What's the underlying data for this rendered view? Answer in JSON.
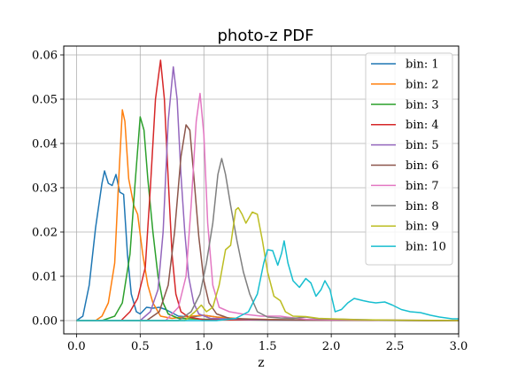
{
  "chart_data": {
    "type": "line",
    "title": "photo-z PDF",
    "xlabel": "z",
    "ylabel": "",
    "xlim": [
      -0.1,
      3.0
    ],
    "ylim": [
      -0.003,
      0.062
    ],
    "grid": true,
    "legend_position": "top-right",
    "x_ticks": [
      0.0,
      0.5,
      1.0,
      1.5,
      2.0,
      2.5,
      3.0
    ],
    "x_tick_labels": [
      "0.0",
      "0.5",
      "1.0",
      "1.5",
      "2.0",
      "2.5",
      "3.0"
    ],
    "y_ticks": [
      0.0,
      0.01,
      0.02,
      0.03,
      0.04,
      0.05,
      0.06
    ],
    "y_tick_labels": [
      "0.00",
      "0.01",
      "0.02",
      "0.03",
      "0.04",
      "0.05",
      "0.06"
    ],
    "series": [
      {
        "name": "bin: 1",
        "color": "#1f77b4",
        "points": [
          [
            0.0,
            0.0
          ],
          [
            0.05,
            0.001
          ],
          [
            0.1,
            0.008
          ],
          [
            0.15,
            0.021
          ],
          [
            0.2,
            0.031
          ],
          [
            0.22,
            0.0338
          ],
          [
            0.25,
            0.031
          ],
          [
            0.28,
            0.0305
          ],
          [
            0.31,
            0.033
          ],
          [
            0.34,
            0.029
          ],
          [
            0.37,
            0.0285
          ],
          [
            0.4,
            0.015
          ],
          [
            0.43,
            0.006
          ],
          [
            0.47,
            0.002
          ],
          [
            0.5,
            0.0015
          ],
          [
            0.55,
            0.003
          ],
          [
            0.6,
            0.0028
          ],
          [
            0.65,
            0.003
          ],
          [
            0.7,
            0.0025
          ],
          [
            0.8,
            0.001
          ],
          [
            0.9,
            0.0008
          ],
          [
            1.0,
            0.0012
          ],
          [
            1.1,
            0.0008
          ],
          [
            1.3,
            0.0003
          ],
          [
            1.6,
            0.0002
          ],
          [
            2.0,
            0.0001
          ],
          [
            3.0,
            0.0
          ]
        ]
      },
      {
        "name": "bin: 2",
        "color": "#ff7f0e",
        "points": [
          [
            0.0,
            0.0
          ],
          [
            0.15,
            0.0
          ],
          [
            0.2,
            0.001
          ],
          [
            0.25,
            0.004
          ],
          [
            0.3,
            0.013
          ],
          [
            0.33,
            0.031
          ],
          [
            0.36,
            0.0476
          ],
          [
            0.38,
            0.045
          ],
          [
            0.41,
            0.032
          ],
          [
            0.45,
            0.026
          ],
          [
            0.48,
            0.024
          ],
          [
            0.52,
            0.015
          ],
          [
            0.56,
            0.008
          ],
          [
            0.6,
            0.004
          ],
          [
            0.66,
            0.001
          ],
          [
            0.75,
            0.0005
          ],
          [
            0.9,
            0.001
          ],
          [
            1.0,
            0.0012
          ],
          [
            1.1,
            0.0008
          ],
          [
            1.3,
            0.0004
          ],
          [
            1.6,
            0.0002
          ],
          [
            2.0,
            0.0001
          ],
          [
            3.0,
            0.0
          ]
        ]
      },
      {
        "name": "bin: 3",
        "color": "#2ca02c",
        "points": [
          [
            0.0,
            0.0
          ],
          [
            0.2,
            0.0
          ],
          [
            0.3,
            0.001
          ],
          [
            0.36,
            0.004
          ],
          [
            0.42,
            0.015
          ],
          [
            0.46,
            0.031
          ],
          [
            0.5,
            0.046
          ],
          [
            0.53,
            0.043
          ],
          [
            0.56,
            0.032
          ],
          [
            0.6,
            0.02
          ],
          [
            0.64,
            0.01
          ],
          [
            0.68,
            0.004
          ],
          [
            0.72,
            0.0015
          ],
          [
            0.8,
            0.0005
          ],
          [
            1.0,
            0.0003
          ],
          [
            1.5,
            0.0001
          ],
          [
            3.0,
            0.0
          ]
        ]
      },
      {
        "name": "bin: 4",
        "color": "#d62728",
        "points": [
          [
            0.0,
            0.0
          ],
          [
            0.35,
            0.0
          ],
          [
            0.42,
            0.002
          ],
          [
            0.48,
            0.005
          ],
          [
            0.54,
            0.012
          ],
          [
            0.58,
            0.03
          ],
          [
            0.62,
            0.05
          ],
          [
            0.66,
            0.0588
          ],
          [
            0.69,
            0.05
          ],
          [
            0.72,
            0.032
          ],
          [
            0.75,
            0.015
          ],
          [
            0.78,
            0.006
          ],
          [
            0.82,
            0.002
          ],
          [
            0.88,
            0.0008
          ],
          [
            1.0,
            0.0002
          ],
          [
            3.0,
            0.0
          ]
        ]
      },
      {
        "name": "bin: 5",
        "color": "#9467bd",
        "points": [
          [
            0.0,
            0.0
          ],
          [
            0.5,
            0.0
          ],
          [
            0.58,
            0.002
          ],
          [
            0.64,
            0.007
          ],
          [
            0.68,
            0.02
          ],
          [
            0.72,
            0.045
          ],
          [
            0.76,
            0.0573
          ],
          [
            0.79,
            0.05
          ],
          [
            0.82,
            0.033
          ],
          [
            0.85,
            0.02
          ],
          [
            0.88,
            0.01
          ],
          [
            0.92,
            0.004
          ],
          [
            0.96,
            0.0015
          ],
          [
            1.05,
            0.0005
          ],
          [
            1.5,
            0.0001
          ],
          [
            3.0,
            0.0
          ]
        ]
      },
      {
        "name": "bin: 6",
        "color": "#8c564b",
        "points": [
          [
            0.0,
            0.0
          ],
          [
            0.55,
            0.0
          ],
          [
            0.65,
            0.002
          ],
          [
            0.72,
            0.008
          ],
          [
            0.77,
            0.02
          ],
          [
            0.82,
            0.037
          ],
          [
            0.86,
            0.0442
          ],
          [
            0.89,
            0.043
          ],
          [
            0.92,
            0.033
          ],
          [
            0.96,
            0.019
          ],
          [
            1.0,
            0.009
          ],
          [
            1.04,
            0.004
          ],
          [
            1.1,
            0.0015
          ],
          [
            1.2,
            0.0005
          ],
          [
            1.5,
            0.0002
          ],
          [
            1.8,
            0.0001
          ],
          [
            3.0,
            0.0
          ]
        ]
      },
      {
        "name": "bin: 7",
        "color": "#e377c2",
        "points": [
          [
            0.0,
            0.0
          ],
          [
            0.7,
            0.0
          ],
          [
            0.8,
            0.003
          ],
          [
            0.86,
            0.01
          ],
          [
            0.9,
            0.026
          ],
          [
            0.94,
            0.045
          ],
          [
            0.97,
            0.0513
          ],
          [
            1.0,
            0.042
          ],
          [
            1.03,
            0.022
          ],
          [
            1.07,
            0.008
          ],
          [
            1.12,
            0.003
          ],
          [
            1.2,
            0.002
          ],
          [
            1.3,
            0.0015
          ],
          [
            1.45,
            0.001
          ],
          [
            1.6,
            0.001
          ],
          [
            1.65,
            0.0008
          ],
          [
            1.8,
            0.0003
          ],
          [
            2.0,
            0.0002
          ],
          [
            3.0,
            0.0
          ]
        ]
      },
      {
        "name": "bin: 8",
        "color": "#7f7f7f",
        "points": [
          [
            0.0,
            0.0
          ],
          [
            0.8,
            0.0
          ],
          [
            0.9,
            0.002
          ],
          [
            0.97,
            0.006
          ],
          [
            1.02,
            0.013
          ],
          [
            1.07,
            0.022
          ],
          [
            1.11,
            0.033
          ],
          [
            1.14,
            0.0366
          ],
          [
            1.17,
            0.033
          ],
          [
            1.21,
            0.026
          ],
          [
            1.26,
            0.018
          ],
          [
            1.31,
            0.011
          ],
          [
            1.36,
            0.006
          ],
          [
            1.42,
            0.002
          ],
          [
            1.5,
            0.0008
          ],
          [
            1.6,
            0.0006
          ],
          [
            1.7,
            0.0005
          ],
          [
            1.8,
            0.0008
          ],
          [
            1.9,
            0.0004
          ],
          [
            2.1,
            0.0003
          ],
          [
            2.4,
            0.0001
          ],
          [
            3.0,
            0.0
          ]
        ]
      },
      {
        "name": "bin: 9",
        "color": "#bcbd22",
        "points": [
          [
            0.0,
            0.0
          ],
          [
            0.85,
            0.0
          ],
          [
            0.93,
            0.002
          ],
          [
            0.98,
            0.0035
          ],
          [
            1.02,
            0.002
          ],
          [
            1.07,
            0.003
          ],
          [
            1.12,
            0.008
          ],
          [
            1.17,
            0.016
          ],
          [
            1.21,
            0.017
          ],
          [
            1.25,
            0.025
          ],
          [
            1.27,
            0.0255
          ],
          [
            1.3,
            0.024
          ],
          [
            1.33,
            0.022
          ],
          [
            1.38,
            0.0245
          ],
          [
            1.42,
            0.024
          ],
          [
            1.46,
            0.018
          ],
          [
            1.5,
            0.011
          ],
          [
            1.55,
            0.0055
          ],
          [
            1.6,
            0.0045
          ],
          [
            1.64,
            0.002
          ],
          [
            1.7,
            0.001
          ],
          [
            1.8,
            0.0009
          ],
          [
            1.9,
            0.0005
          ],
          [
            2.0,
            0.0004
          ],
          [
            2.2,
            0.0002
          ],
          [
            2.5,
            0.0001
          ],
          [
            3.0,
            0.0
          ]
        ]
      },
      {
        "name": "bin: 10",
        "color": "#17becf",
        "points": [
          [
            0.0,
            0.0
          ],
          [
            1.1,
            0.0
          ],
          [
            1.25,
            0.0005
          ],
          [
            1.35,
            0.002
          ],
          [
            1.42,
            0.006
          ],
          [
            1.47,
            0.013
          ],
          [
            1.5,
            0.016
          ],
          [
            1.54,
            0.0158
          ],
          [
            1.58,
            0.0125
          ],
          [
            1.61,
            0.0152
          ],
          [
            1.63,
            0.018
          ],
          [
            1.66,
            0.013
          ],
          [
            1.7,
            0.009
          ],
          [
            1.75,
            0.0075
          ],
          [
            1.8,
            0.0095
          ],
          [
            1.84,
            0.0085
          ],
          [
            1.88,
            0.0055
          ],
          [
            1.92,
            0.007
          ],
          [
            1.95,
            0.009
          ],
          [
            1.99,
            0.007
          ],
          [
            2.03,
            0.002
          ],
          [
            2.08,
            0.0025
          ],
          [
            2.13,
            0.004
          ],
          [
            2.18,
            0.005
          ],
          [
            2.25,
            0.0045
          ],
          [
            2.3,
            0.0042
          ],
          [
            2.35,
            0.004
          ],
          [
            2.42,
            0.0042
          ],
          [
            2.48,
            0.0035
          ],
          [
            2.55,
            0.0025
          ],
          [
            2.62,
            0.002
          ],
          [
            2.7,
            0.0018
          ],
          [
            2.78,
            0.0012
          ],
          [
            2.85,
            0.0008
          ],
          [
            2.9,
            0.0006
          ],
          [
            2.95,
            0.0004
          ],
          [
            3.0,
            0.0004
          ]
        ]
      }
    ]
  }
}
